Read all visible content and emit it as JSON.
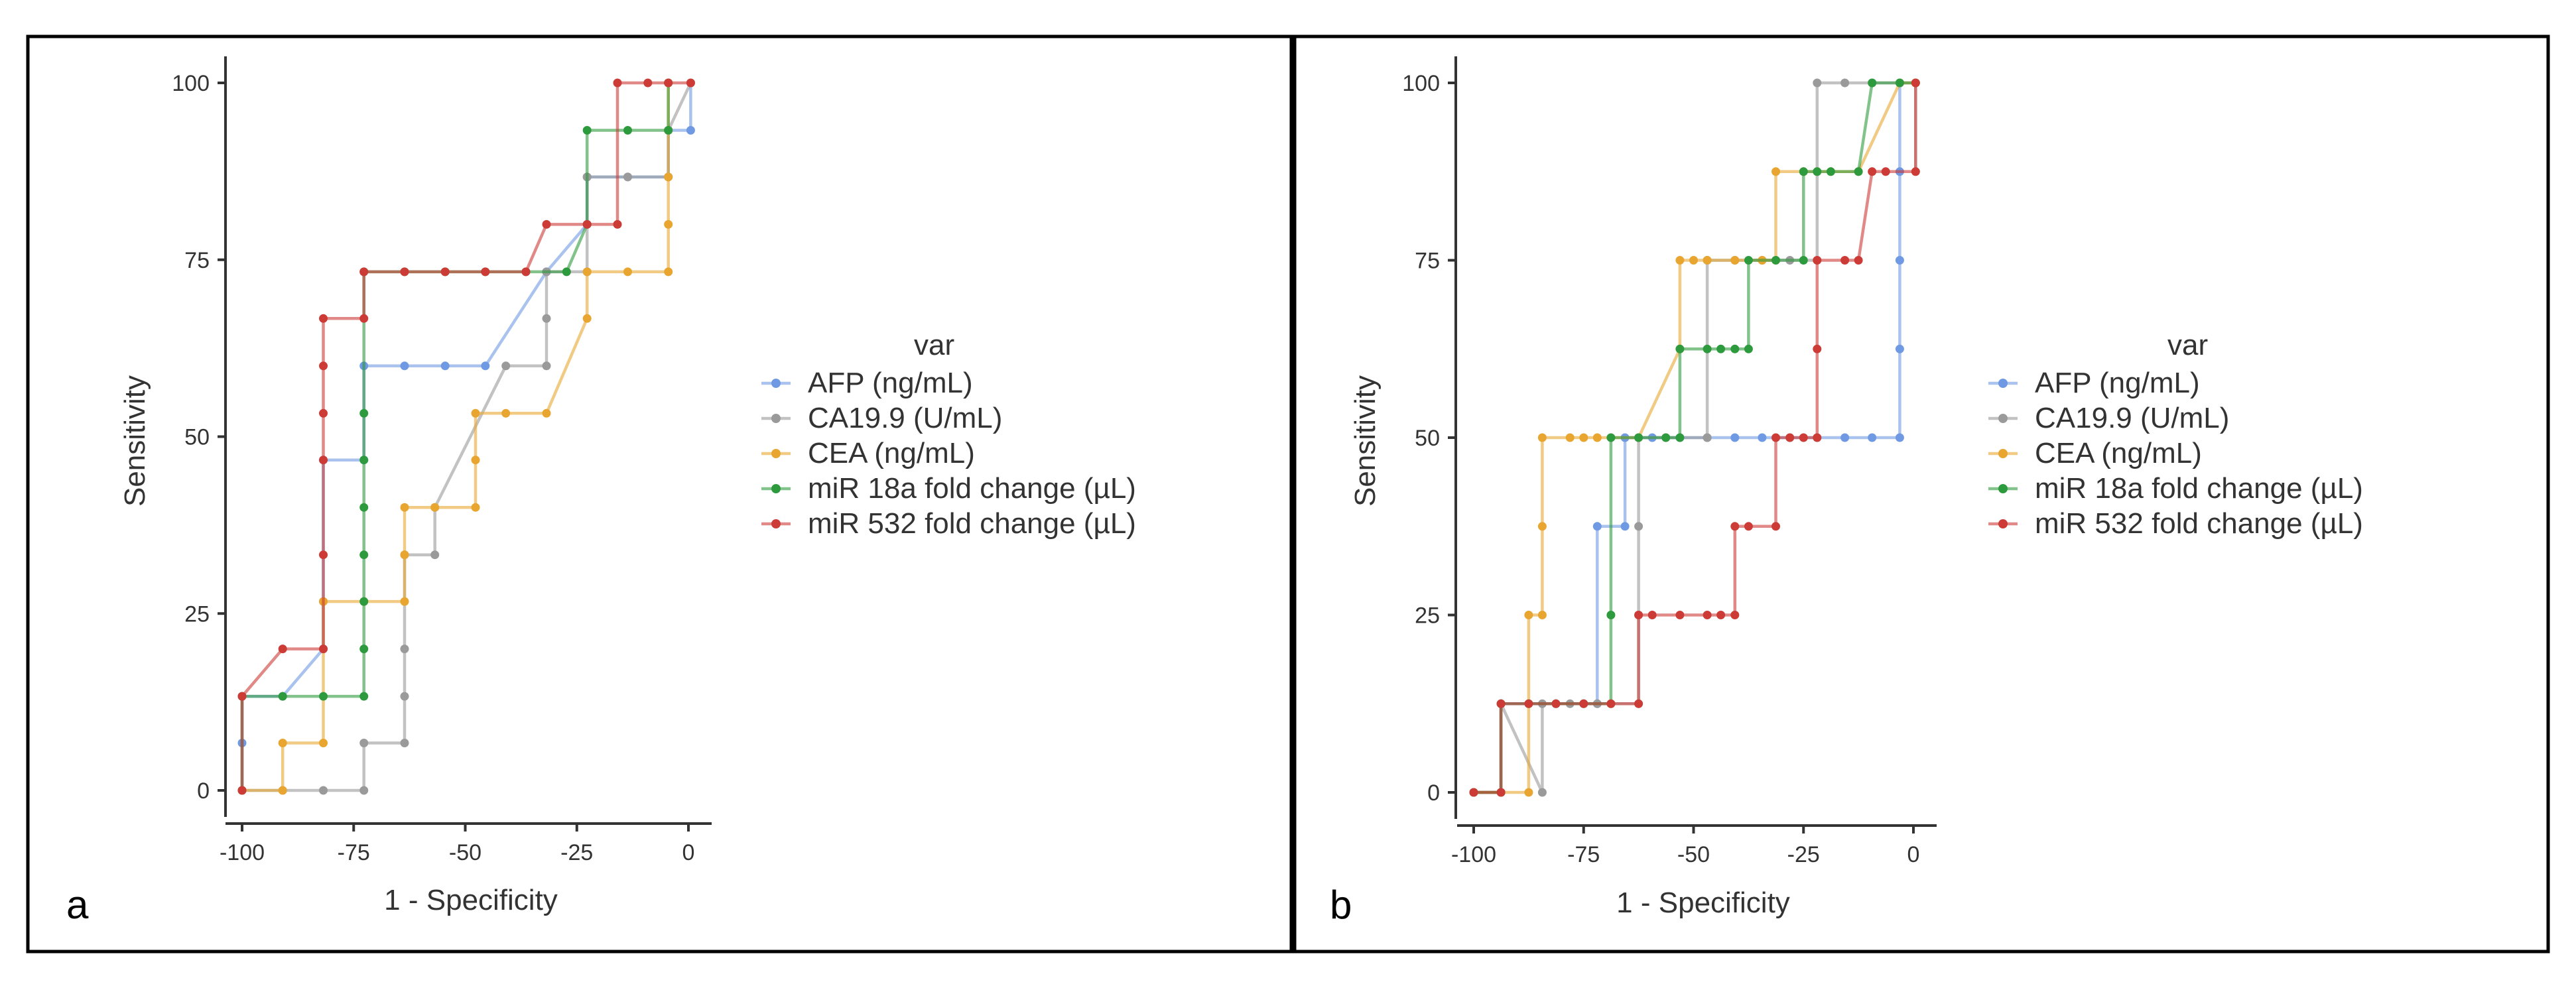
{
  "figure_colors": {
    "AFP": "#6f9ae3",
    "CA19.9": "#9a9a9a",
    "CEA": "#e8a630",
    "miR18a": "#2e9a3e",
    "miR532": "#cc3b35"
  },
  "chart_data": [
    {
      "type": "line",
      "panel_label": "a",
      "xlabel": "1 - Specificity",
      "ylabel": "Sensitivity",
      "xlim": [
        -100,
        0
      ],
      "ylim": [
        0,
        100
      ],
      "xticks": [
        -100,
        -75,
        -50,
        -25,
        0
      ],
      "yticks": [
        0,
        25,
        50,
        75,
        100
      ],
      "xtick_labels": [
        "-100",
        "-75",
        "-50",
        "-25",
        "0"
      ],
      "ytick_labels": [
        "0",
        "25",
        "50",
        "75",
        "100"
      ],
      "legend_title": "var",
      "legend_position": "right",
      "grid": false,
      "series": [
        {
          "name": "AFP (ng/mL)",
          "key": "AFP",
          "color": "#6f9ae3",
          "x": [
            -100,
            -100,
            -100,
            -90.9,
            -81.8,
            -81.8,
            -81.8,
            -72.7,
            -72.7,
            -63.6,
            -54.5,
            -45.5,
            -31.8,
            -22.7,
            -22.7,
            -13.6,
            -4.5,
            -4.5,
            0.5,
            0.5
          ],
          "y": [
            0,
            6.7,
            13.3,
            13.3,
            20,
            26.7,
            46.7,
            46.7,
            60,
            60,
            60,
            60,
            73.3,
            80,
            86.7,
            86.7,
            86.7,
            93.3,
            93.3,
            100
          ]
        },
        {
          "name": "CA19.9 (U/mL)",
          "key": "CA19.9",
          "color": "#9a9a9a",
          "x": [
            -100,
            -90.9,
            -81.8,
            -72.7,
            -72.7,
            -63.6,
            -63.6,
            -63.6,
            -63.6,
            -56.8,
            -56.8,
            -40.9,
            -31.8,
            -31.8,
            -31.8,
            -22.7,
            -22.7,
            -13.6,
            -4.5,
            -4.5,
            0.5
          ],
          "y": [
            0,
            0,
            0,
            0,
            6.7,
            6.7,
            13.3,
            20,
            33.3,
            33.3,
            40,
            60,
            60,
            66.7,
            73.3,
            73.3,
            86.7,
            86.7,
            86.7,
            93.3,
            100
          ]
        },
        {
          "name": "CEA (ng/mL)",
          "key": "CEA",
          "color": "#e8a630",
          "x": [
            -100,
            -90.9,
            -90.9,
            -81.8,
            -81.8,
            -72.7,
            -63.6,
            -63.6,
            -63.6,
            -56.8,
            -47.7,
            -47.7,
            -47.7,
            -40.9,
            -31.8,
            -22.7,
            -22.7,
            -13.6,
            -4.5,
            -4.5,
            -4.5,
            -4.5,
            -4.5
          ],
          "y": [
            0,
            0,
            6.7,
            6.7,
            26.7,
            26.7,
            26.7,
            33.3,
            40,
            40,
            40,
            46.7,
            53.3,
            53.3,
            53.3,
            66.7,
            73.3,
            73.3,
            73.3,
            80,
            86.7,
            93.3,
            100
          ]
        },
        {
          "name": "miR 18a fold change (µL)",
          "key": "miR18a",
          "color": "#2e9a3e",
          "x": [
            -100,
            -100,
            -90.9,
            -81.8,
            -72.7,
            -72.7,
            -72.7,
            -72.7,
            -72.7,
            -72.7,
            -72.7,
            -72.7,
            -63.6,
            -54.5,
            -45.5,
            -36.4,
            -27.3,
            -22.7,
            -22.7,
            -13.6,
            -4.5,
            -4.5
          ],
          "y": [
            0,
            13.3,
            13.3,
            13.3,
            13.3,
            20,
            26.7,
            33.3,
            40,
            46.7,
            53.3,
            73.3,
            73.3,
            73.3,
            73.3,
            73.3,
            73.3,
            80,
            93.3,
            93.3,
            93.3,
            100
          ]
        },
        {
          "name": "miR 532 fold change (µL)",
          "key": "miR532",
          "color": "#cc3b35",
          "x": [
            -100,
            -100,
            -90.9,
            -81.8,
            -81.8,
            -81.8,
            -81.8,
            -81.8,
            -81.8,
            -72.7,
            -72.7,
            -63.6,
            -54.5,
            -45.5,
            -36.4,
            -31.8,
            -22.7,
            -15.9,
            -15.9,
            -9.1,
            -4.5,
            0.5
          ],
          "y": [
            0,
            13.3,
            20,
            20,
            33.3,
            46.7,
            53.3,
            60,
            66.7,
            66.7,
            73.3,
            73.3,
            73.3,
            73.3,
            73.3,
            80,
            80,
            80,
            100,
            100,
            100,
            100
          ]
        }
      ]
    },
    {
      "type": "line",
      "panel_label": "b",
      "xlabel": "1 - Specificity",
      "ylabel": "Sensitivity",
      "xlim": [
        -100,
        0
      ],
      "ylim": [
        0,
        100
      ],
      "xticks": [
        -100,
        -75,
        -50,
        -25,
        0
      ],
      "yticks": [
        0,
        25,
        50,
        75,
        100
      ],
      "xtick_labels": [
        "-100",
        "-75",
        "-50",
        "-25",
        "0"
      ],
      "ytick_labels": [
        "0",
        "25",
        "50",
        "75",
        "100"
      ],
      "legend_title": "var",
      "legend_position": "right",
      "grid": false,
      "series": [
        {
          "name": "AFP (ng/mL)",
          "key": "AFP",
          "color": "#6f9ae3",
          "x": [
            -100,
            -93.8,
            -93.8,
            -87.5,
            -81.3,
            -75,
            -71.9,
            -71.9,
            -65.6,
            -65.6,
            -59.4,
            -53.1,
            -46.9,
            -40.6,
            -34.4,
            -28.1,
            -21.9,
            -15.6,
            -9.4,
            -3.1,
            -3.1,
            -3.1,
            -3.1,
            -3.1
          ],
          "y": [
            0,
            0,
            12.5,
            12.5,
            12.5,
            12.5,
            12.5,
            37.5,
            37.5,
            50,
            50,
            50,
            50,
            50,
            50,
            50,
            50,
            50,
            50,
            50,
            62.5,
            75,
            87.5,
            100
          ]
        },
        {
          "name": "CA19.9 (U/mL)",
          "key": "CA19.9",
          "color": "#9a9a9a",
          "x": [
            -100,
            -93.8,
            -93.8,
            -84.4,
            -84.4,
            -78.1,
            -71.9,
            -62.5,
            -62.5,
            -62.5,
            -62.5,
            -56.3,
            -46.9,
            -46.9,
            -40.6,
            -34.4,
            -28.1,
            -21.9,
            -21.9,
            -21.9,
            -15.6,
            -9.4,
            -3.1,
            0.5,
            0.5
          ],
          "y": [
            0,
            0,
            12.5,
            0,
            12.5,
            12.5,
            12.5,
            12.5,
            25,
            37.5,
            50,
            50,
            50,
            75,
            75,
            75,
            75,
            75,
            87.5,
            100,
            100,
            100,
            100,
            100,
            87.5
          ]
        },
        {
          "name": "CEA (ng/mL)",
          "key": "CEA",
          "color": "#e8a630",
          "x": [
            -100,
            -93.8,
            -87.5,
            -87.5,
            -84.4,
            -84.4,
            -84.4,
            -78.1,
            -75,
            -71.9,
            -62.5,
            -53.1,
            -53.1,
            -50,
            -46.9,
            -40.6,
            -34.4,
            -31.3,
            -31.3,
            -25,
            -21.9,
            -18.8,
            -12.5,
            -3.1,
            0.5
          ],
          "y": [
            0,
            0,
            0,
            25,
            25,
            37.5,
            50,
            50,
            50,
            50,
            50,
            62.5,
            75,
            75,
            75,
            75,
            75,
            75,
            87.5,
            87.5,
            87.5,
            87.5,
            87.5,
            100,
            100
          ]
        },
        {
          "name": "miR 18a fold change (µL)",
          "key": "miR18a",
          "color": "#2e9a3e",
          "x": [
            -100,
            -93.8,
            -93.8,
            -87.5,
            -81.3,
            -75,
            -68.8,
            -68.8,
            -68.8,
            -62.5,
            -56.3,
            -53.1,
            -53.1,
            -46.9,
            -43.8,
            -40.6,
            -37.5,
            -37.5,
            -31.3,
            -25,
            -25,
            -21.9,
            -18.8,
            -12.5,
            -9.4,
            -3.1,
            0.5
          ],
          "y": [
            0,
            0,
            12.5,
            12.5,
            12.5,
            12.5,
            12.5,
            25,
            50,
            50,
            50,
            50,
            62.5,
            62.5,
            62.5,
            62.5,
            62.5,
            75,
            75,
            75,
            87.5,
            87.5,
            87.5,
            87.5,
            100,
            100,
            100
          ]
        },
        {
          "name": "miR 532 fold change (µL)",
          "key": "miR532",
          "color": "#cc3b35",
          "x": [
            -100,
            -93.8,
            -93.8,
            -87.5,
            -81.3,
            -75,
            -68.8,
            -62.5,
            -62.5,
            -59.4,
            -53.1,
            -46.9,
            -43.8,
            -40.6,
            -40.6,
            -37.5,
            -31.3,
            -31.3,
            -28.1,
            -25,
            -21.9,
            -21.9,
            -21.9,
            -15.6,
            -12.5,
            -9.4,
            -6.3,
            0.5,
            0.5
          ],
          "y": [
            0,
            0,
            12.5,
            12.5,
            12.5,
            12.5,
            12.5,
            12.5,
            25,
            25,
            25,
            25,
            25,
            25,
            37.5,
            37.5,
            37.5,
            50,
            50,
            50,
            50,
            62.5,
            75,
            75,
            75,
            87.5,
            87.5,
            87.5,
            100
          ]
        }
      ]
    }
  ]
}
